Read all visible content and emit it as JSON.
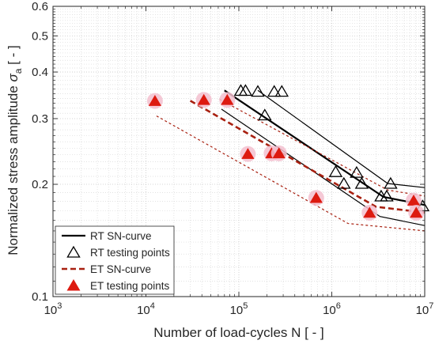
{
  "chart_data": {
    "type": "scatter",
    "xlabel": "Number of load-cycles N [ - ]",
    "ylabel_main": "Normalized stress amplitude ",
    "ylabel_symbol": "σ",
    "ylabel_subscript": "a",
    "ylabel_unit": " [ - ]",
    "x_scale": "log",
    "y_scale": "log",
    "xlim": [
      1000,
      10000000
    ],
    "ylim": [
      0.1,
      0.6
    ],
    "grid": true,
    "minor_grid": true,
    "legend_position": "bottom-left",
    "x_ticks": [
      {
        "value": 1000,
        "base": "10",
        "exp": "3"
      },
      {
        "value": 10000,
        "base": "10",
        "exp": "4"
      },
      {
        "value": 100000,
        "base": "10",
        "exp": "5"
      },
      {
        "value": 1000000,
        "base": "10",
        "exp": "6"
      },
      {
        "value": 10000000,
        "base": "10",
        "exp": "7"
      }
    ],
    "y_ticks": [
      {
        "value": 0.1,
        "label": "0.1"
      },
      {
        "value": 0.2,
        "label": "0.2"
      },
      {
        "value": 0.3,
        "label": "0.3"
      },
      {
        "value": 0.4,
        "label": "0.4"
      },
      {
        "value": 0.5,
        "label": "0.5"
      },
      {
        "value": 0.6,
        "label": "0.6"
      }
    ],
    "series": [
      {
        "name": "RT SN-curve",
        "kind": "line",
        "color": "#000000",
        "lines": [
          {
            "role": "mean",
            "width": 2.2,
            "dash": "",
            "points": [
              [
                70000,
                0.357
              ],
              [
                3600000,
                0.185
              ],
              [
                10000000,
                0.176
              ]
            ]
          },
          {
            "role": "upper",
            "width": 1.2,
            "dash": "",
            "points": [
              [
                160000,
                0.357
              ],
              [
                4000000,
                0.201
              ],
              [
                10000000,
                0.196
              ]
            ]
          },
          {
            "role": "lower",
            "width": 1.2,
            "dash": "",
            "points": [
              [
                65000,
                0.318
              ],
              [
                3300000,
                0.164
              ],
              [
                10000000,
                0.155
              ]
            ]
          }
        ]
      },
      {
        "name": "RT testing points",
        "kind": "marker",
        "marker": "triangle-open",
        "color": "#000000",
        "points": [
          [
            105000,
            0.355
          ],
          [
            118000,
            0.355
          ],
          [
            160000,
            0.353
          ],
          [
            240000,
            0.353
          ],
          [
            290000,
            0.353
          ],
          [
            190000,
            0.305
          ],
          [
            1100000,
            0.215
          ],
          [
            1350000,
            0.2
          ],
          [
            1850000,
            0.214
          ],
          [
            2100000,
            0.2
          ],
          [
            3400000,
            0.185
          ],
          [
            3900000,
            0.185
          ],
          [
            4300000,
            0.2
          ],
          [
            9500000,
            0.174
          ]
        ]
      },
      {
        "name": "ET SN-curve",
        "kind": "line",
        "color": "#a82010",
        "lines": [
          {
            "role": "mean",
            "width": 2.6,
            "dash": "7 4",
            "points": [
              [
                30000,
                0.335
              ],
              [
                3000000,
                0.174
              ],
              [
                10000000,
                0.168
              ]
            ]
          },
          {
            "role": "upper",
            "width": 1.2,
            "dash": "3 3",
            "points": [
              [
                62000,
                0.338
              ],
              [
                4000000,
                0.193
              ],
              [
                10000000,
                0.186
              ]
            ]
          },
          {
            "role": "lower",
            "width": 1.2,
            "dash": "3 3",
            "points": [
              [
                13000,
                0.305
              ],
              [
                1500000,
                0.157
              ],
              [
                10000000,
                0.15
              ]
            ]
          }
        ]
      },
      {
        "name": "ET testing points",
        "kind": "marker",
        "marker": "triangle-filled",
        "color": "#dd1a10",
        "halo": "#f3bfcf",
        "points": [
          [
            12500,
            0.333
          ],
          [
            42000,
            0.335
          ],
          [
            75000,
            0.335
          ],
          [
            125000,
            0.24
          ],
          [
            225000,
            0.241
          ],
          [
            270000,
            0.241
          ],
          [
            680000,
            0.183
          ],
          [
            2550000,
            0.167
          ],
          [
            7600000,
            0.18
          ],
          [
            8100000,
            0.167
          ]
        ]
      }
    ],
    "legend": [
      {
        "label": "RT SN-curve",
        "series": 0
      },
      {
        "label": "RT testing points",
        "series": 1
      },
      {
        "label": "ET SN-curve",
        "series": 2
      },
      {
        "label": "ET testing points",
        "series": 3
      }
    ]
  }
}
